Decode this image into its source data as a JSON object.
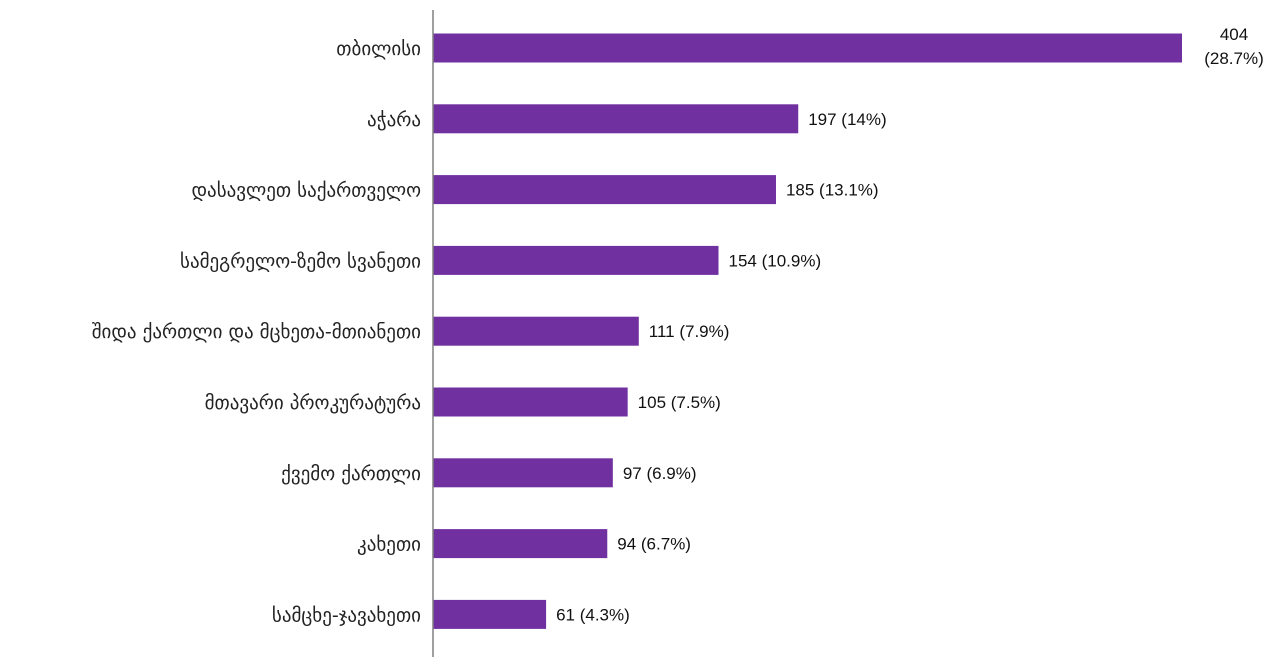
{
  "chart_data": {
    "type": "bar",
    "orientation": "horizontal",
    "categories": [
      "თბილისი",
      "აჭარა",
      "დასავლეთ საქართველო",
      "სამეგრელო-ზემო სვანეთი",
      "შიდა ქართლი და მცხეთა-მთიანეთი",
      "მთავარი პროკურატურა",
      "ქვემო ქართლი",
      "კახეთი",
      "სამცხე-ჯავახეთი"
    ],
    "values": [
      404,
      197,
      185,
      154,
      111,
      105,
      97,
      94,
      61
    ],
    "data_labels": [
      [
        "404",
        "(28.7%)"
      ],
      [
        "197 (14%)"
      ],
      [
        "185 (13.1%)"
      ],
      [
        "154 (10.9%)"
      ],
      [
        "111 (7.9%)"
      ],
      [
        "105 (7.5%)"
      ],
      [
        "97 (6.9%)"
      ],
      [
        "94 (6.7%)"
      ],
      [
        "61 (4.3%)"
      ]
    ],
    "title": "",
    "xlabel": "",
    "ylabel": "",
    "xlim": [
      0,
      404
    ],
    "grid": false,
    "legend": "none",
    "bar_color": "#7030a0",
    "axis_color": "#808080"
  }
}
